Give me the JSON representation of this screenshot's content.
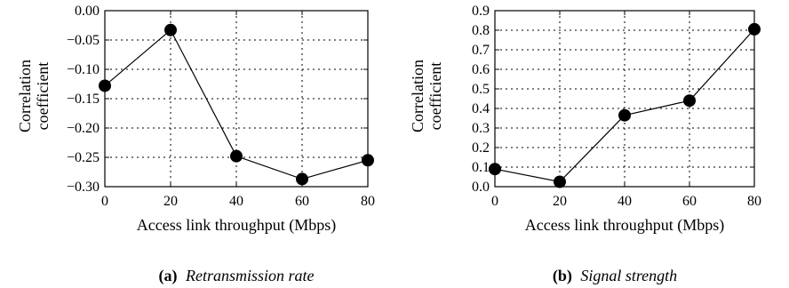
{
  "chart_data": [
    {
      "type": "line",
      "caption_tag": "(a)",
      "caption_text": "Retransmission rate",
      "xlabel": "Access link throughput (Mbps)",
      "ylabel_line1": "Correlation",
      "ylabel_line2": "coefficient",
      "x": [
        0,
        20,
        40,
        60,
        80
      ],
      "values": [
        -0.128,
        -0.033,
        -0.248,
        -0.287,
        -0.255
      ],
      "xlim": [
        0,
        80
      ],
      "ylim": [
        -0.3,
        0.0
      ],
      "xticks": [
        "0",
        "20",
        "40",
        "60",
        "80"
      ],
      "yticks": [
        "0.00",
        "-0.05",
        "-0.10",
        "-0.15",
        "-0.20",
        "-0.25",
        "-0.30"
      ],
      "grid": true
    },
    {
      "type": "line",
      "caption_tag": "(b)",
      "caption_text": "Signal strength",
      "xlabel": "Access link throughput (Mbps)",
      "ylabel_line1": "Correlation",
      "ylabel_line2": "coefficient",
      "x": [
        0,
        20,
        40,
        60,
        80
      ],
      "values": [
        0.09,
        0.025,
        0.365,
        0.44,
        0.805
      ],
      "xlim": [
        0,
        80
      ],
      "ylim": [
        0.0,
        0.9
      ],
      "xticks": [
        "0",
        "20",
        "40",
        "60",
        "80"
      ],
      "yticks": [
        "0.9",
        "0.8",
        "0.7",
        "0.6",
        "0.5",
        "0.4",
        "0.3",
        "0.2",
        "0.1",
        "0.0"
      ],
      "grid": true
    }
  ]
}
